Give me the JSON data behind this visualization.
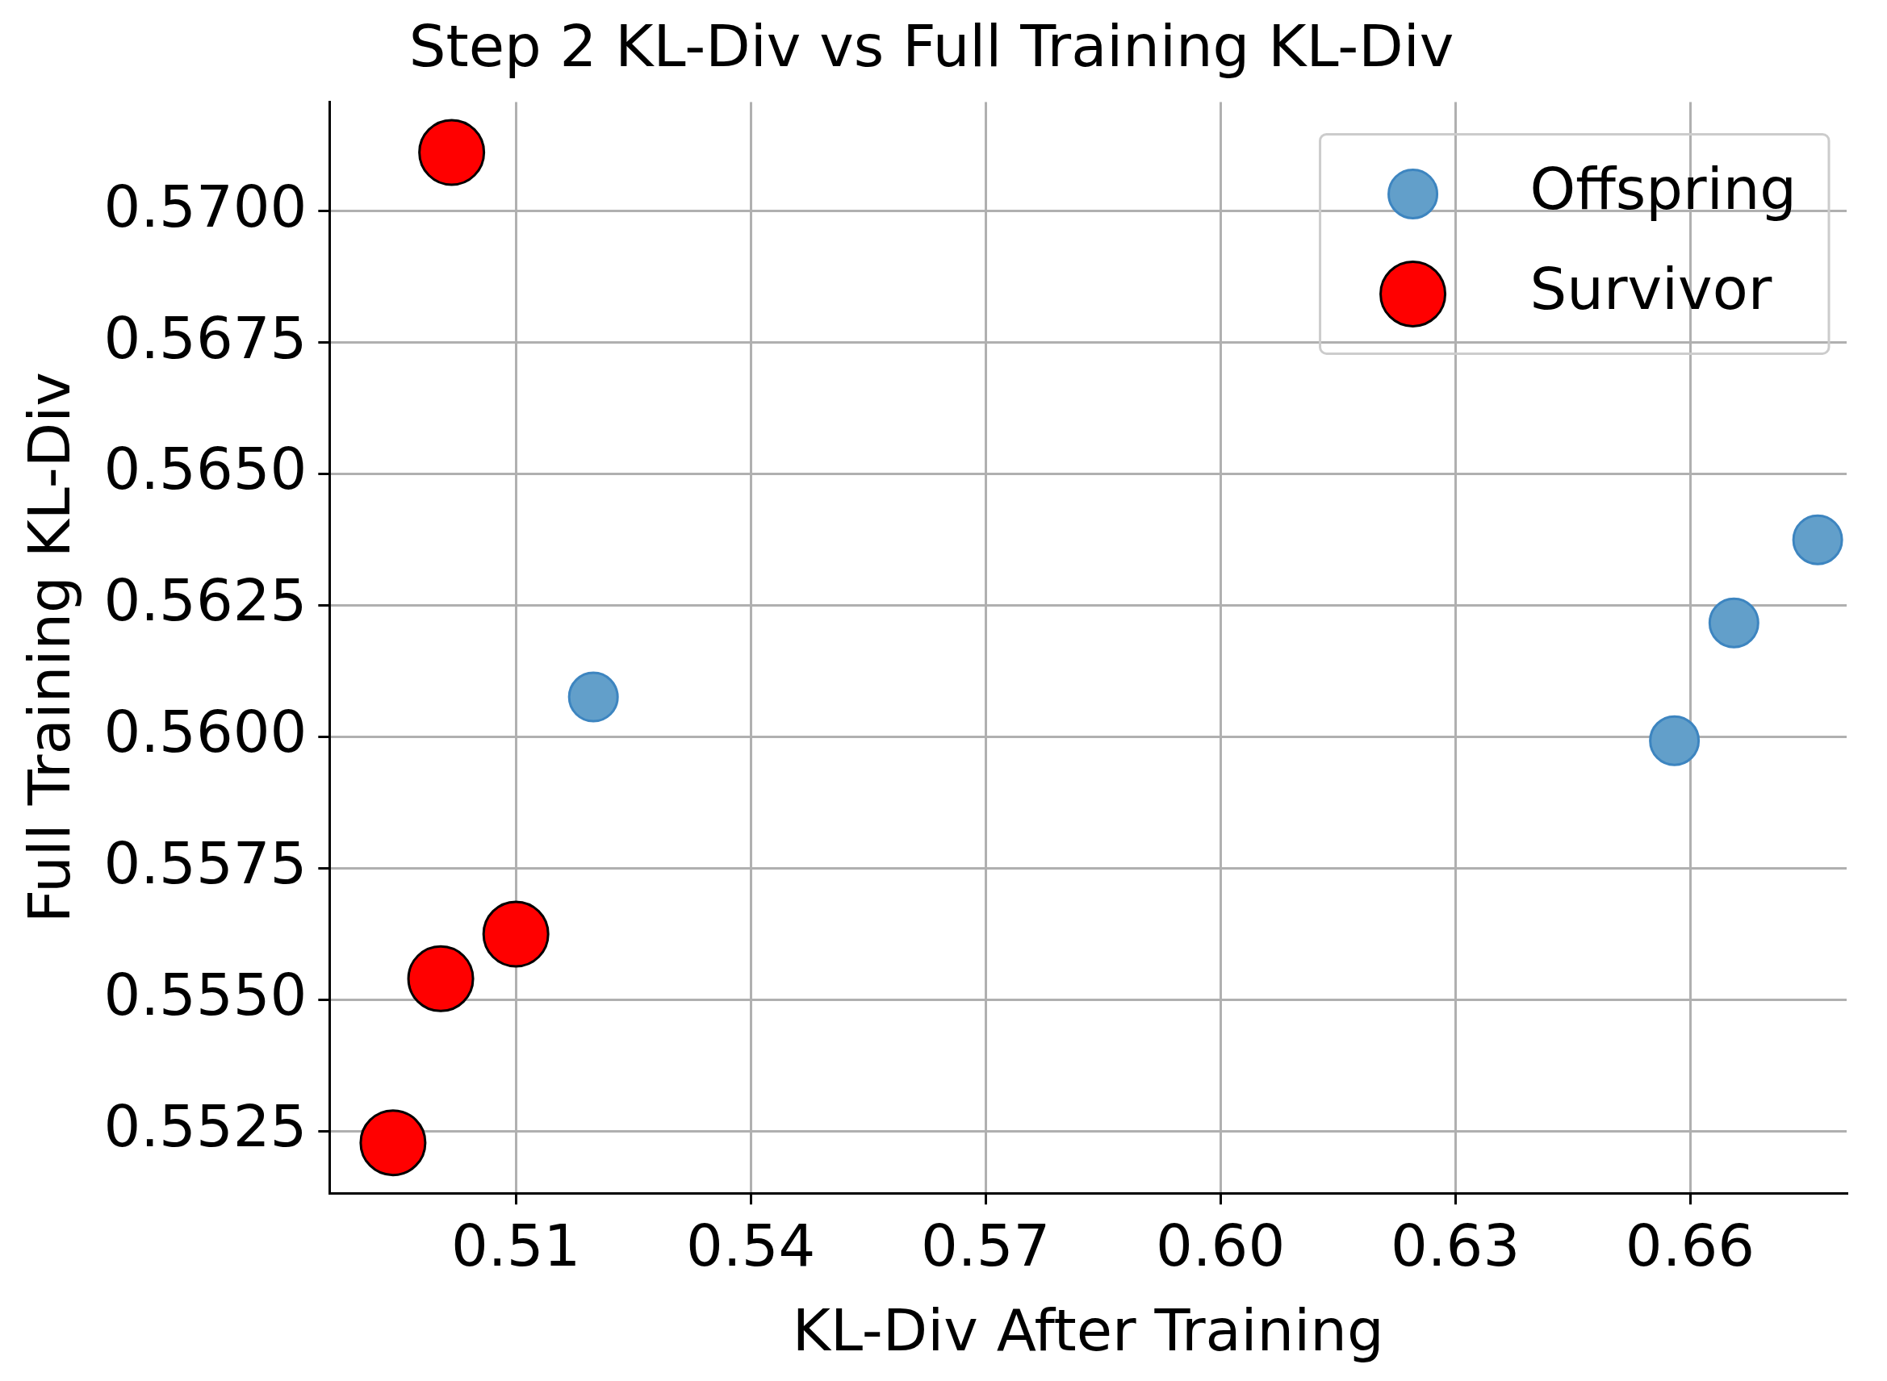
{
  "chart_data": {
    "type": "scatter",
    "title": "Step 2 KL-Div vs Full Training KL-Div",
    "xlabel": "KL-Div After Training",
    "ylabel": "Full Training KL-Div",
    "xlim": [
      0.4862,
      0.68
    ],
    "xticks": [
      0.51,
      0.54,
      0.57,
      {
        "value": 0.6,
        "label": "0.60"
      },
      0.63,
      0.66
    ],
    "ylim": [
      0.55132,
      0.57208
    ],
    "yticks": [
      0.5525,
      {
        "value": 0.555,
        "label": "0.5550"
      },
      0.5575,
      {
        "value": 0.56,
        "label": "0.5600"
      },
      0.5625,
      {
        "value": 0.565,
        "label": "0.5650"
      },
      0.5675,
      {
        "value": 0.57,
        "label": "0.5700"
      }
    ],
    "grid": true,
    "legend": "top right",
    "marker": "circle",
    "series": [
      {
        "name": "Offspring",
        "color": "#629fca",
        "x": [
          0.5199,
          0.658,
          0.6656,
          0.6763
        ],
        "values": [
          0.56076,
          0.55993,
          0.56217,
          0.56375
        ]
      },
      {
        "name": "Survivor",
        "color": "#ff0000",
        "x": [
          0.5018,
          0.51,
          0.5004,
          0.4943
        ],
        "values": [
          0.57112,
          0.55625,
          0.5554,
          0.55228
        ]
      }
    ]
  }
}
